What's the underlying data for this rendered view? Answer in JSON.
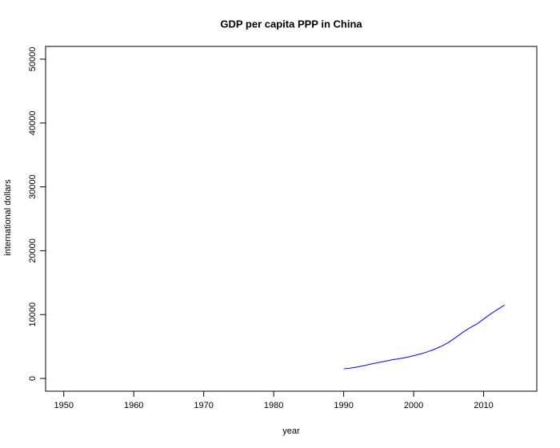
{
  "chart_data": {
    "type": "line",
    "title": "GDP per capita PPP in China",
    "x_label": "year",
    "y_label": "international dollars",
    "x": [
      1990,
      1991,
      1992,
      1993,
      1994,
      1995,
      1996,
      1997,
      1998,
      1999,
      2000,
      2001,
      2002,
      2003,
      2004,
      2005,
      2006,
      2007,
      2008,
      2009,
      2010,
      2011,
      2012,
      2013
    ],
    "series": [
      {
        "name": "China",
        "color": "#0000ff",
        "values": [
          1500,
          1620,
          1800,
          2030,
          2270,
          2490,
          2720,
          2930,
          3100,
          3300,
          3560,
          3840,
          4180,
          4580,
          5060,
          5650,
          6400,
          7200,
          7900,
          8500,
          9300,
          10100,
          10800,
          11500
        ]
      }
    ],
    "xlim": [
      1947.4,
      2017.6
    ],
    "ylim": [
      -2000,
      52000
    ],
    "xticks": [
      1950,
      1960,
      1970,
      1980,
      1990,
      2000,
      2010
    ],
    "yticks": [
      0,
      10000,
      20000,
      30000,
      40000,
      50000
    ],
    "grid": false,
    "legend": false
  }
}
